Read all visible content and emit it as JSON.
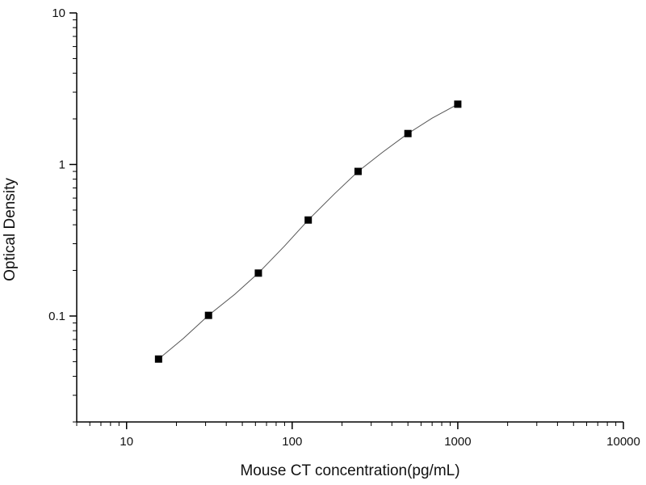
{
  "chart_data": {
    "type": "scatter",
    "xlabel": "Mouse CT concentration(pg/mL)",
    "ylabel": "Optical Density",
    "xscale": "log",
    "yscale": "log",
    "xlim": [
      5,
      10000
    ],
    "ylim": [
      0.02,
      10
    ],
    "x_ticks": [
      {
        "value": 10,
        "label": "10"
      },
      {
        "value": 100,
        "label": "100"
      },
      {
        "value": 1000,
        "label": "1000"
      },
      {
        "value": 10000,
        "label": "10000"
      }
    ],
    "y_ticks": [
      {
        "value": 0.1,
        "label": "0.1"
      },
      {
        "value": 1,
        "label": "1"
      },
      {
        "value": 10,
        "label": "10"
      }
    ],
    "grid": false,
    "legend": "none",
    "marker": "square",
    "marker_color": "#000000",
    "line_color": "#555555",
    "series": [
      {
        "x": [
          15.6,
          31.25,
          62.5,
          125,
          250,
          500,
          1000
        ],
        "y": [
          0.052,
          0.101,
          0.192,
          0.43,
          0.9,
          1.6,
          2.5
        ]
      }
    ],
    "fit_curve": {
      "x": [
        15.6,
        22,
        31.25,
        45,
        62.5,
        90,
        125,
        180,
        250,
        350,
        500,
        700,
        1000
      ],
      "y": [
        0.052,
        0.071,
        0.101,
        0.139,
        0.192,
        0.29,
        0.43,
        0.64,
        0.9,
        1.2,
        1.6,
        2.02,
        2.5
      ]
    }
  }
}
